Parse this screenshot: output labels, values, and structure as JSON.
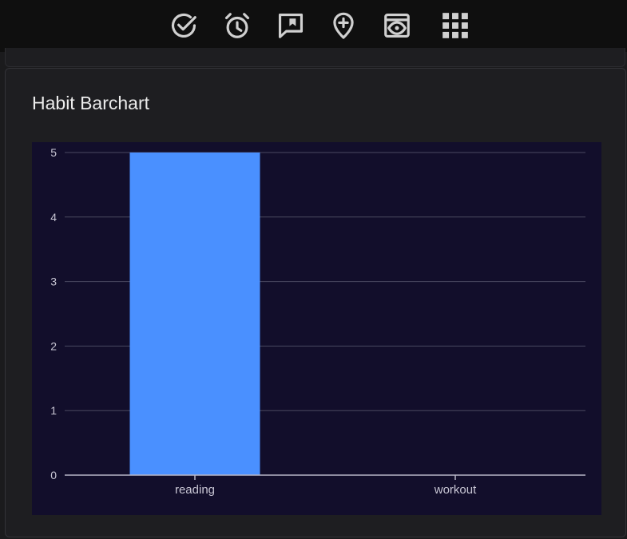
{
  "toolbar": {
    "icons": [
      "check-circle-icon",
      "alarm-clock-icon",
      "bookmark-comment-icon",
      "add-location-icon",
      "preview-window-icon",
      "apps-grid-icon"
    ]
  },
  "card": {
    "title": "Habit Barchart"
  },
  "colors": {
    "page_background": "#1b1b1d",
    "toolbar_background": "#0f0f0f",
    "chart_background": "#120e2b",
    "bar": "#4a90ff",
    "grid": "#4a4860",
    "axis": "#b8b6c8",
    "tick_text": "#c8c6d4"
  },
  "chart_data": {
    "type": "bar",
    "title": "",
    "xlabel": "",
    "ylabel": "",
    "categories": [
      "reading",
      "workout"
    ],
    "values": [
      5,
      0
    ],
    "ylim": [
      0,
      5
    ],
    "yticks": [
      0,
      1,
      2,
      3,
      4,
      5
    ],
    "grid": true,
    "legend": "none"
  }
}
